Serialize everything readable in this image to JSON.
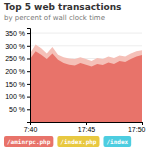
{
  "chart_data": {
    "type": "area",
    "title": "Top 5 web transactions",
    "subtitle": "by percent of wall clock time",
    "x": [
      0,
      1,
      2,
      3,
      4,
      5,
      6,
      7,
      8,
      9,
      10,
      11,
      12,
      13,
      14,
      15,
      16,
      17,
      18,
      19,
      20
    ],
    "series": [
      {
        "color": "#f5c0b8",
        "values": [
          270,
          305,
          290,
          270,
          295,
          265,
          255,
          250,
          248,
          255,
          248,
          240,
          252,
          248,
          258,
          252,
          262,
          258,
          270,
          278,
          282
        ]
      },
      {
        "color": "#e8736a",
        "values": [
          248,
          278,
          265,
          248,
          270,
          245,
          232,
          225,
          222,
          232,
          225,
          218,
          228,
          224,
          234,
          228,
          240,
          236,
          248,
          258,
          264
        ]
      }
    ],
    "legend_entries": [
      {
        "name": "/aminrpc.php",
        "color": "#e8736a"
      },
      {
        "name": "/index.php",
        "color": "#e8c840"
      },
      {
        "name": "/index",
        "color": "#4dcde0"
      }
    ],
    "xlim": [
      0,
      20
    ],
    "xticks": [
      {
        "value": 0,
        "label": "7:40"
      },
      {
        "value": 10,
        "label": "17:45"
      },
      {
        "value": 20,
        "label": "17:50"
      }
    ],
    "ylim": [
      0,
      370
    ],
    "yticks": [
      {
        "value": 350,
        "label": "350 %"
      },
      {
        "value": 300,
        "label": "300 %"
      },
      {
        "value": 250,
        "label": "250 %"
      },
      {
        "value": 200,
        "label": "200 %"
      },
      {
        "value": 150,
        "label": "150 %"
      },
      {
        "value": 100,
        "label": "100 %"
      },
      {
        "value": 50,
        "label": "50 %"
      },
      {
        "value": 0,
        "label": null
      }
    ],
    "grid": true
  }
}
